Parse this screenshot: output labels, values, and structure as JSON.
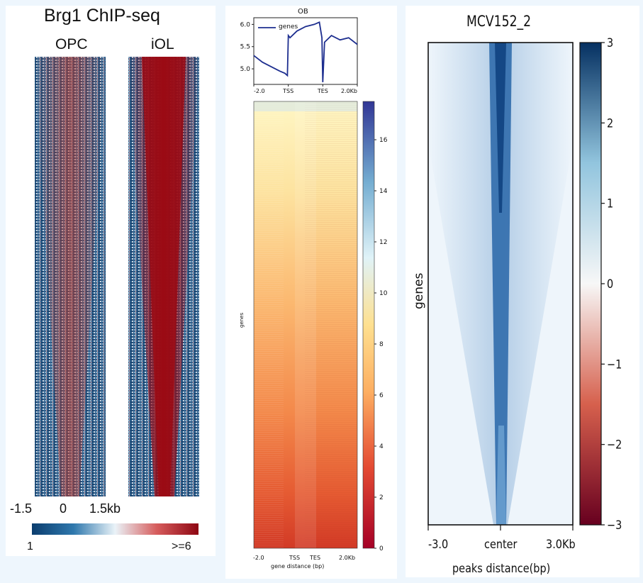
{
  "chart_data": [
    {
      "type": "heatmap",
      "title": "Brg1 ChIP-seq",
      "panels": [
        "OPC",
        "iOL"
      ],
      "x_ticks": [
        "-1.5",
        "0",
        "1.5kb"
      ],
      "colorbar": {
        "min_label": "1",
        "max_label": ">=6",
        "colors": [
          "#0b3d6e",
          "#2f78ad",
          "#eaf3f8",
          "#d65c5c",
          "#8e0612"
        ]
      }
    },
    {
      "type": "heatmap",
      "title": "OB",
      "profile": {
        "legend": "genes",
        "x": [
          -2.0,
          -1.5,
          -1.0,
          -0.5,
          -0.2,
          -0.05,
          0.0,
          0.1,
          0.5,
          1.0,
          1.5,
          1.8,
          1.95,
          2.0,
          2.1,
          2.5,
          3.0,
          3.5,
          4.0
        ],
        "y": [
          5.3,
          5.15,
          5.05,
          4.95,
          4.9,
          4.85,
          5.75,
          5.7,
          5.85,
          5.95,
          6.0,
          6.05,
          5.7,
          4.7,
          5.6,
          5.75,
          5.65,
          5.7,
          5.55
        ],
        "y_ticks": [
          "5.0",
          "5.5",
          "6.0"
        ],
        "ylim": [
          4.65,
          6.15
        ],
        "x_ticks": [
          "-2.0",
          "TSS",
          "TES",
          "2.0Kb"
        ]
      },
      "ylabel": "genes",
      "xlabel": "gene distance (bp)",
      "x_ticks": [
        "-2.0",
        "TSS",
        "TES",
        "2.0Kb"
      ],
      "colorbar": {
        "ticks": [
          "0",
          "2",
          "4",
          "6",
          "8",
          "10",
          "12",
          "14",
          "16"
        ],
        "min": 0,
        "max": 17.5,
        "colors": [
          "#a50026",
          "#e34a33",
          "#fdae61",
          "#fee090",
          "#e0f3f8",
          "#74add1",
          "#313695"
        ]
      }
    },
    {
      "type": "heatmap",
      "title": "MCV152_2",
      "ylabel": "genes",
      "xlabel": "peaks distance(bp)",
      "x_ticks": [
        "-3.0",
        "center",
        "3.0Kb"
      ],
      "colorbar": {
        "ticks": [
          "3",
          "2",
          "1",
          "0",
          "−1",
          "−2",
          "−3"
        ],
        "min": -3,
        "max": 3,
        "colors": [
          "#67001f",
          "#d6604d",
          "#f7f7f7",
          "#92c5de",
          "#053061"
        ]
      }
    }
  ]
}
